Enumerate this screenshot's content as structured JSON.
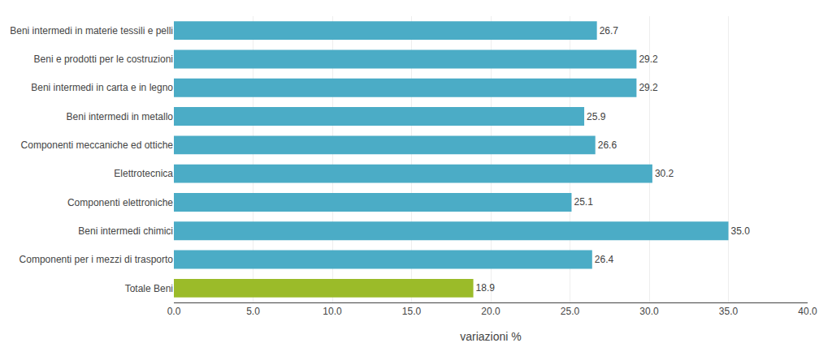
{
  "chart_data": {
    "type": "bar",
    "orientation": "horizontal",
    "categories": [
      "Totale Beni",
      "Componenti per i mezzi di trasporto",
      "Beni intermedi chimici",
      "Componenti elettroniche",
      "Elettrotecnica",
      "Componenti meccaniche ed ottiche",
      "Beni intermedi in metallo",
      "Beni intermedi in carta e in legno",
      "Beni e prodotti per le costruzioni",
      "Beni intermedi in materie tessili e pelli"
    ],
    "values": [
      18.9,
      26.4,
      35.0,
      25.1,
      30.2,
      26.6,
      25.9,
      29.2,
      29.2,
      26.7
    ],
    "value_labels": [
      "18.9",
      "26.4",
      "35.0",
      "25.1",
      "30.2",
      "26.6",
      "25.9",
      "29.2",
      "29.2",
      "26.7"
    ],
    "data_labels": true,
    "colors": [
      "#9BBB29",
      "#4BACC6",
      "#4BACC6",
      "#4BACC6",
      "#4BACC6",
      "#4BACC6",
      "#4BACC6",
      "#4BACC6",
      "#4BACC6",
      "#4BACC6"
    ],
    "xlabel": "variazioni %",
    "xlim": [
      0,
      40.0
    ],
    "xticks": [
      {
        "value": 0.0,
        "label": "0.0"
      },
      {
        "value": 5.0,
        "label": "5.0"
      },
      {
        "value": 10.0,
        "label": "10.0"
      },
      {
        "value": 15.0,
        "label": "15.0"
      },
      {
        "value": 20.0,
        "label": "20.0"
      },
      {
        "value": 25.0,
        "label": "25.0"
      },
      {
        "value": 30.0,
        "label": "30.0"
      },
      {
        "value": 35.0,
        "label": "35.0"
      },
      {
        "value": 40.0,
        "label": "40.0"
      }
    ],
    "grid": true
  }
}
